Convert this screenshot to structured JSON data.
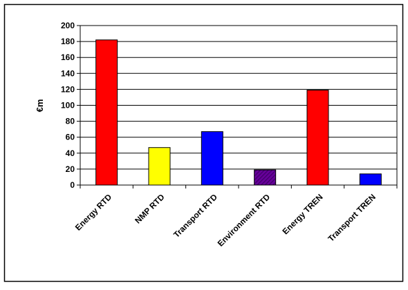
{
  "chart_data": {
    "type": "bar",
    "title": "",
    "xlabel": "",
    "ylabel": "€m",
    "ylim": [
      0,
      200
    ],
    "yticks": [
      0,
      20,
      40,
      60,
      80,
      100,
      120,
      140,
      160,
      180,
      200
    ],
    "grid": true,
    "legend": "none",
    "categories": [
      "Energy RTD",
      "NMP RTD",
      "Transport RTD",
      "Environment RTD",
      "Energy TREN",
      "Transport TREN"
    ],
    "values": [
      182,
      47,
      67,
      19,
      119,
      14
    ],
    "colors": [
      "#ff0000",
      "#ffff00",
      "#0000ff",
      "#660099",
      "#ff0000",
      "#0000ff"
    ],
    "patterns": [
      "solid",
      "solid",
      "solid",
      "hatched",
      "solid",
      "solid"
    ]
  }
}
